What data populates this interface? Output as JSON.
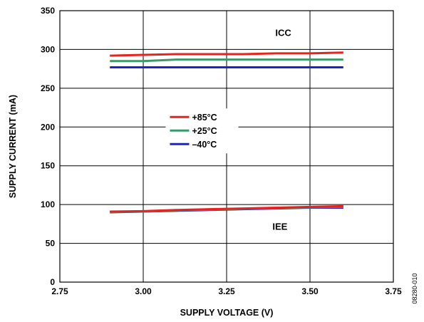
{
  "chart_data": {
    "type": "line",
    "title": "",
    "xlabel": "SUPPLY VOLTAGE (V)",
    "ylabel": "SUPPLY CURRENT (mA)",
    "xlim": [
      2.75,
      3.75
    ],
    "ylim": [
      0,
      350
    ],
    "xticks": [
      "2.75",
      "3.00",
      "3.25",
      "3.50",
      "3.75"
    ],
    "yticks": [
      "0",
      "50",
      "100",
      "150",
      "200",
      "250",
      "300",
      "350"
    ],
    "grid": true,
    "legend_position": "center",
    "annotations": [
      {
        "text": "ICC",
        "x": 3.42,
        "y": 322
      },
      {
        "text": "IEE",
        "x": 3.41,
        "y": 72
      }
    ],
    "figure_id": "08280-010",
    "series": [
      {
        "name": "+85°C",
        "color": "#e8231e",
        "group": "ICC",
        "x": [
          2.9,
          3.0,
          3.1,
          3.2,
          3.3,
          3.4,
          3.5,
          3.6
        ],
        "y": [
          292,
          293,
          294,
          294,
          294,
          295,
          295,
          296
        ]
      },
      {
        "name": "+25°C",
        "color": "#3a9a6a",
        "group": "ICC",
        "x": [
          2.9,
          3.0,
          3.1,
          3.2,
          3.3,
          3.4,
          3.5,
          3.6
        ],
        "y": [
          285,
          285,
          287,
          287,
          287,
          287,
          287,
          287
        ]
      },
      {
        "name": "–40°C",
        "color": "#1a22d8",
        "group": "ICC",
        "x": [
          2.9,
          3.0,
          3.1,
          3.2,
          3.3,
          3.4,
          3.5,
          3.6
        ],
        "y": [
          277,
          277,
          277,
          277,
          277,
          277,
          277,
          277
        ]
      },
      {
        "name": "–40°C",
        "color": "#1a22d8",
        "group": "IEE",
        "x": [
          2.9,
          3.0,
          3.1,
          3.2,
          3.3,
          3.4,
          3.5,
          3.6
        ],
        "y": [
          90,
          91,
          92,
          93,
          94,
          95,
          96,
          96
        ]
      },
      {
        "name": "+25°C",
        "color": "#3a9a6a",
        "group": "IEE",
        "x": [
          2.9,
          3.0,
          3.1,
          3.2,
          3.3,
          3.4,
          3.5,
          3.6
        ],
        "y": [
          90.5,
          91,
          92.5,
          93.5,
          94.5,
          95.5,
          96.5,
          97
        ]
      },
      {
        "name": "+85°C",
        "color": "#e8231e",
        "group": "IEE",
        "x": [
          2.9,
          3.0,
          3.1,
          3.2,
          3.3,
          3.4,
          3.5,
          3.6
        ],
        "y": [
          91,
          91.5,
          93,
          94,
          95,
          96,
          97,
          98
        ]
      }
    ],
    "legend": [
      {
        "label": "+85°C",
        "color": "#e8231e"
      },
      {
        "label": "+25°C",
        "color": "#3a9a6a"
      },
      {
        "label": "–40°C",
        "color": "#1a22d8"
      }
    ]
  }
}
